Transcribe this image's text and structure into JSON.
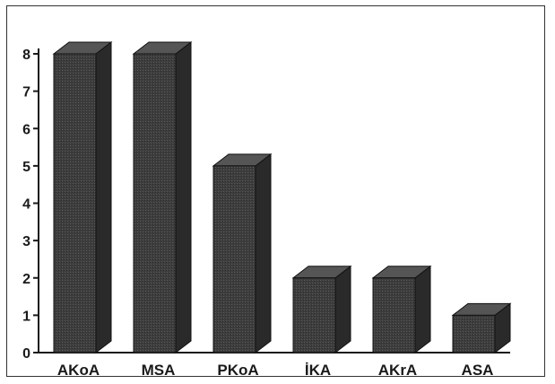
{
  "chart_data": {
    "type": "bar",
    "categories": [
      "AKoA",
      "MSA",
      "PKoA",
      "İKA",
      "AKrA",
      "ASA"
    ],
    "values": [
      8,
      8,
      5,
      2,
      2,
      1
    ],
    "title": "",
    "xlabel": "",
    "ylabel": "",
    "ylim": [
      0,
      8
    ],
    "yticks": [
      "0",
      "1",
      "2",
      "3",
      "4",
      "5",
      "6",
      "7",
      "8"
    ],
    "grid": false,
    "style": "3d",
    "colors": {
      "bar_front": "#3d3d3d",
      "bar_side": "#2a2a2a",
      "bar_top": "#555555",
      "axis": "#1a1a1a"
    }
  }
}
